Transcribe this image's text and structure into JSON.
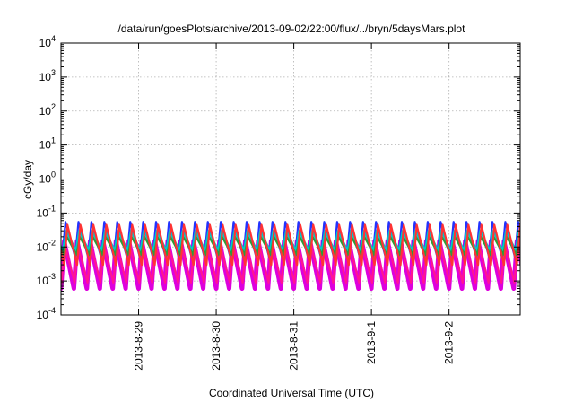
{
  "chart_data": {
    "type": "line",
    "title": "/data/run/goesPlots/archive/2013-09-02/22:00/flux/../bryn/5daysMars.plot",
    "xlabel": "Coordinated Universal Time (UTC)",
    "ylabel": "cGy/day",
    "y_scale": "log",
    "ylim": [
      0.0001,
      10000
    ],
    "y_ticks": [
      {
        "value": 0.0001,
        "base": "10",
        "exp": "-4"
      },
      {
        "value": 0.001,
        "base": "10",
        "exp": "-3"
      },
      {
        "value": 0.01,
        "base": "10",
        "exp": "-2"
      },
      {
        "value": 0.1,
        "base": "10",
        "exp": "-1"
      },
      {
        "value": 1,
        "base": "10",
        "exp": "0"
      },
      {
        "value": 10,
        "base": "10",
        "exp": "1"
      },
      {
        "value": 100,
        "base": "10",
        "exp": "2"
      },
      {
        "value": 1000,
        "base": "10",
        "exp": "3"
      },
      {
        "value": 10000,
        "base": "10",
        "exp": "4"
      }
    ],
    "xlim": [
      "2013-08-28 00:00",
      "2013-09-02 22:00"
    ],
    "x_ticks": [
      {
        "value": "2013-08-29 00:00",
        "label": "2013-8-29"
      },
      {
        "value": "2013-08-30 00:00",
        "label": "2013-8-30"
      },
      {
        "value": "2013-08-31 00:00",
        "label": "2013-8-31"
      },
      {
        "value": "2013-09-01 00:00",
        "label": "2013-9-1"
      },
      {
        "value": "2013-09-02 00:00",
        "label": "2013-9-2"
      }
    ],
    "grid": true,
    "legend": "none",
    "pattern": {
      "period_hours": 4,
      "note": "sawtooth dose-rate oscillation repeating every ~4 hours over the full range"
    },
    "series": [
      {
        "color": "#dd00dd",
        "peak": 0.015,
        "trough": 0.0006
      },
      {
        "color": "#ff1493",
        "peak": 0.012,
        "trough": 0.0009
      },
      {
        "color": "#2233ff",
        "peak": 0.055,
        "trough": 0.005
      },
      {
        "color": "#00c8c8",
        "peak": 0.03,
        "trough": 0.008
      },
      {
        "color": "#2a9d3a",
        "peak": 0.02,
        "trough": 0.006
      },
      {
        "color": "#ff3333",
        "peak": 0.045,
        "trough": 0.003
      }
    ]
  }
}
